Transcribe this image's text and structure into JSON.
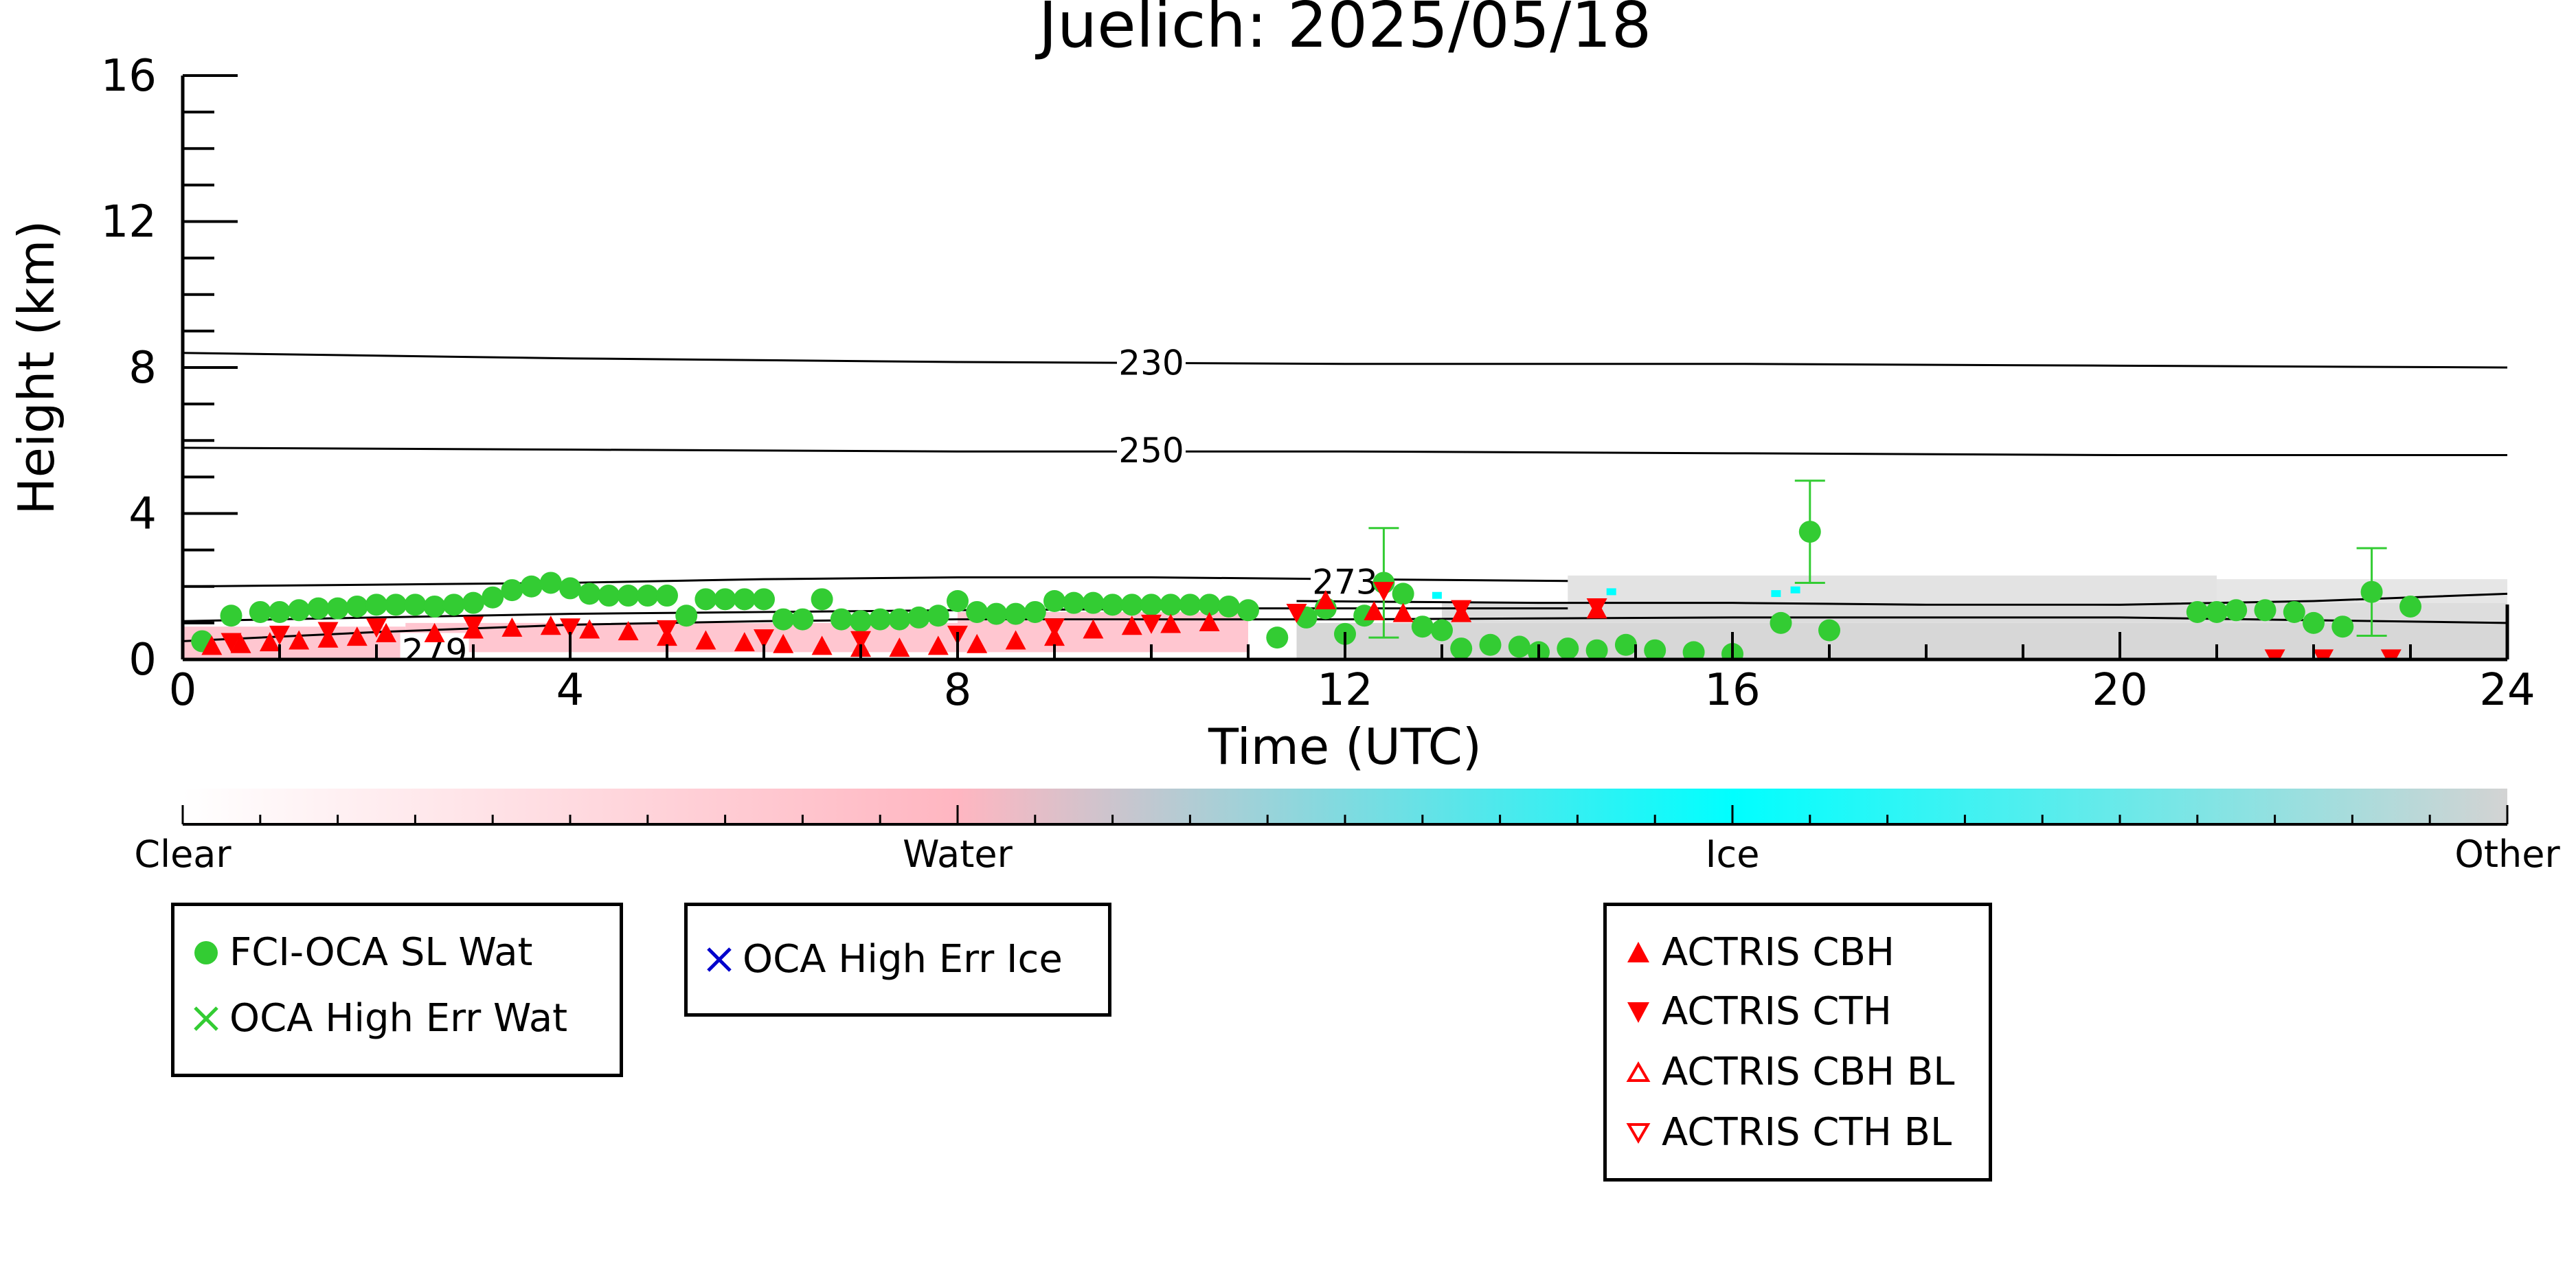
{
  "chart_data": {
    "type": "scatter",
    "title": "Juelich: 2025/05/18",
    "xlabel": "Time (UTC)",
    "ylabel": "Height (km)",
    "xlim": [
      0,
      24
    ],
    "ylim": [
      0,
      16
    ],
    "x_ticks": [
      "0",
      "4",
      "8",
      "12",
      "16",
      "20",
      "24"
    ],
    "y_ticks": [
      "0",
      "4",
      "8",
      "12",
      "16"
    ],
    "colorbar": {
      "labels": [
        "Clear",
        "Water",
        "Ice",
        "Other"
      ],
      "colors": [
        "#ffffff",
        "#ffb6c1",
        "#00ffff",
        "#d3d3d3"
      ]
    },
    "isotherms": [
      {
        "label": "230",
        "x": [
          0,
          4,
          8,
          12,
          16,
          20,
          24
        ],
        "y": [
          8.4,
          8.25,
          8.15,
          8.1,
          8.1,
          8.05,
          8.0
        ]
      },
      {
        "label": "250",
        "x": [
          0,
          4,
          8,
          12,
          16,
          20,
          24
        ],
        "y": [
          5.8,
          5.75,
          5.7,
          5.7,
          5.65,
          5.6,
          5.6
        ]
      },
      {
        "label": "273",
        "x": [
          0,
          2,
          4,
          6,
          8,
          10,
          12,
          14.3
        ],
        "y": [
          2.0,
          2.05,
          2.1,
          2.2,
          2.25,
          2.25,
          2.2,
          2.15
        ]
      },
      {
        "label": "",
        "x": [
          11.5,
          14,
          16,
          18,
          20,
          22,
          24
        ],
        "y": [
          1.6,
          1.55,
          1.55,
          1.5,
          1.5,
          1.6,
          1.8
        ]
      },
      {
        "label": "279",
        "x": [
          0,
          2,
          4,
          6,
          8,
          10,
          12,
          16,
          20,
          24
        ],
        "y": [
          0.5,
          0.75,
          0.95,
          1.05,
          1.1,
          1.1,
          1.1,
          1.15,
          1.15,
          1.0
        ]
      },
      {
        "label": "",
        "x": [
          0,
          2,
          4,
          6,
          8,
          11,
          14.3
        ],
        "y": [
          1.05,
          1.15,
          1.25,
          1.3,
          1.35,
          1.4,
          1.4
        ]
      }
    ],
    "series": [
      {
        "name": "FCI-OCA SL Wat",
        "color": "#33cc33",
        "marker": "circle",
        "x": [
          0.2,
          0.5,
          0.8,
          1.0,
          1.2,
          1.4,
          1.6,
          1.8,
          2.0,
          2.2,
          2.4,
          2.6,
          2.8,
          3.0,
          3.2,
          3.4,
          3.6,
          3.8,
          4.0,
          4.2,
          4.4,
          4.6,
          4.8,
          5.0,
          5.2,
          5.4,
          5.6,
          5.8,
          6.0,
          6.2,
          6.4,
          6.6,
          6.8,
          7.0,
          7.2,
          7.4,
          7.6,
          7.8,
          8.0,
          8.2,
          8.4,
          8.6,
          8.8,
          9.0,
          9.2,
          9.4,
          9.6,
          9.8,
          10.0,
          10.2,
          10.4,
          10.6,
          10.8,
          11.0,
          11.3,
          11.6,
          11.8,
          12.0,
          12.2,
          12.4,
          12.6,
          12.8,
          13.0,
          13.2,
          13.5,
          13.8,
          14.0,
          14.3,
          14.6,
          14.9,
          15.2,
          15.6,
          16.0,
          16.5,
          16.8,
          17.0,
          20.8,
          21.0,
          21.2,
          21.5,
          21.8,
          22.0,
          22.3,
          22.6,
          23.0
        ],
        "y": [
          0.5,
          1.2,
          1.3,
          1.3,
          1.35,
          1.4,
          1.4,
          1.45,
          1.5,
          1.5,
          1.5,
          1.45,
          1.5,
          1.55,
          1.7,
          1.9,
          2.0,
          2.1,
          1.95,
          1.8,
          1.75,
          1.75,
          1.75,
          1.75,
          1.2,
          1.65,
          1.65,
          1.65,
          1.65,
          1.1,
          1.1,
          1.65,
          1.1,
          1.05,
          1.1,
          1.1,
          1.15,
          1.2,
          1.6,
          1.3,
          1.25,
          1.25,
          1.3,
          1.6,
          1.55,
          1.55,
          1.5,
          1.5,
          1.5,
          1.5,
          1.5,
          1.5,
          1.45,
          1.35,
          0.6,
          1.15,
          1.4,
          0.7,
          1.2,
          2.1,
          1.8,
          0.9,
          0.8,
          0.3,
          0.4,
          0.35,
          0.2,
          0.3,
          0.25,
          0.4,
          0.25,
          0.2,
          0.15,
          1.0,
          3.5,
          0.8,
          1.3,
          1.3,
          1.35,
          1.35,
          1.3,
          1.0,
          0.9,
          1.85,
          1.45
        ],
        "yerr": [
          0,
          0,
          0,
          0,
          0,
          0,
          0,
          0,
          0,
          0,
          0,
          0,
          0,
          0,
          0,
          0,
          0,
          0,
          0,
          0,
          0,
          0,
          0,
          0,
          0,
          0,
          0,
          0,
          0,
          0,
          0,
          0,
          0,
          0,
          0,
          0,
          0,
          0,
          0,
          0,
          0,
          0,
          0,
          0,
          0,
          0,
          0,
          0,
          0,
          0,
          0,
          0,
          0,
          0,
          0,
          0,
          0,
          0,
          0,
          1.5,
          0,
          0,
          0,
          0,
          0,
          0,
          0,
          0,
          0,
          0,
          0,
          0,
          0,
          0,
          1.4,
          0,
          0,
          0,
          0,
          0,
          0,
          0,
          0,
          1.2,
          0
        ]
      },
      {
        "name": "OCA High Err Wat",
        "color": "#33cc33",
        "marker": "x",
        "x": [],
        "y": []
      },
      {
        "name": "OCA High Err Ice",
        "color": "#0000cc",
        "marker": "x",
        "x": [],
        "y": []
      },
      {
        "name": "ACTRIS CBH",
        "color": "#ff0000",
        "marker": "triangle-up",
        "x": [
          0.3,
          0.6,
          0.9,
          1.2,
          1.5,
          1.8,
          2.1,
          2.6,
          3.0,
          3.4,
          3.8,
          4.2,
          4.6,
          5.0,
          5.4,
          5.8,
          6.2,
          6.6,
          7.0,
          7.4,
          7.8,
          8.2,
          8.6,
          9.0,
          9.4,
          9.8,
          10.2,
          10.6,
          11.8,
          12.3,
          12.6,
          13.2,
          14.6
        ],
        "y": [
          0.35,
          0.4,
          0.45,
          0.5,
          0.55,
          0.6,
          0.7,
          0.7,
          0.8,
          0.85,
          0.9,
          0.8,
          0.75,
          0.6,
          0.5,
          0.45,
          0.4,
          0.35,
          0.3,
          0.3,
          0.35,
          0.4,
          0.5,
          0.6,
          0.8,
          0.9,
          0.95,
          1.0,
          1.6,
          1.3,
          1.25,
          1.25,
          1.35
        ]
      },
      {
        "name": "ACTRIS CTH",
        "color": "#ff0000",
        "marker": "triangle-down",
        "x": [
          0.5,
          1.0,
          1.5,
          2.0,
          3.0,
          4.0,
          5.0,
          6.0,
          7.0,
          8.0,
          9.0,
          10.0,
          11.5,
          12.4,
          13.2,
          14.6,
          21.6,
          22.1,
          22.8
        ],
        "y": [
          0.5,
          0.7,
          0.8,
          0.9,
          0.95,
          0.9,
          0.85,
          0.6,
          0.55,
          0.7,
          0.9,
          1.0,
          1.3,
          1.9,
          1.4,
          1.45,
          0.05,
          0.05,
          0.05
        ]
      },
      {
        "name": "ACTRIS CBH BL",
        "color": "#ff0000",
        "marker": "triangle-up-open",
        "x": [],
        "y": []
      },
      {
        "name": "ACTRIS CTH BL",
        "color": "#ff0000",
        "marker": "triangle-down-open",
        "x": [],
        "y": []
      }
    ]
  }
}
